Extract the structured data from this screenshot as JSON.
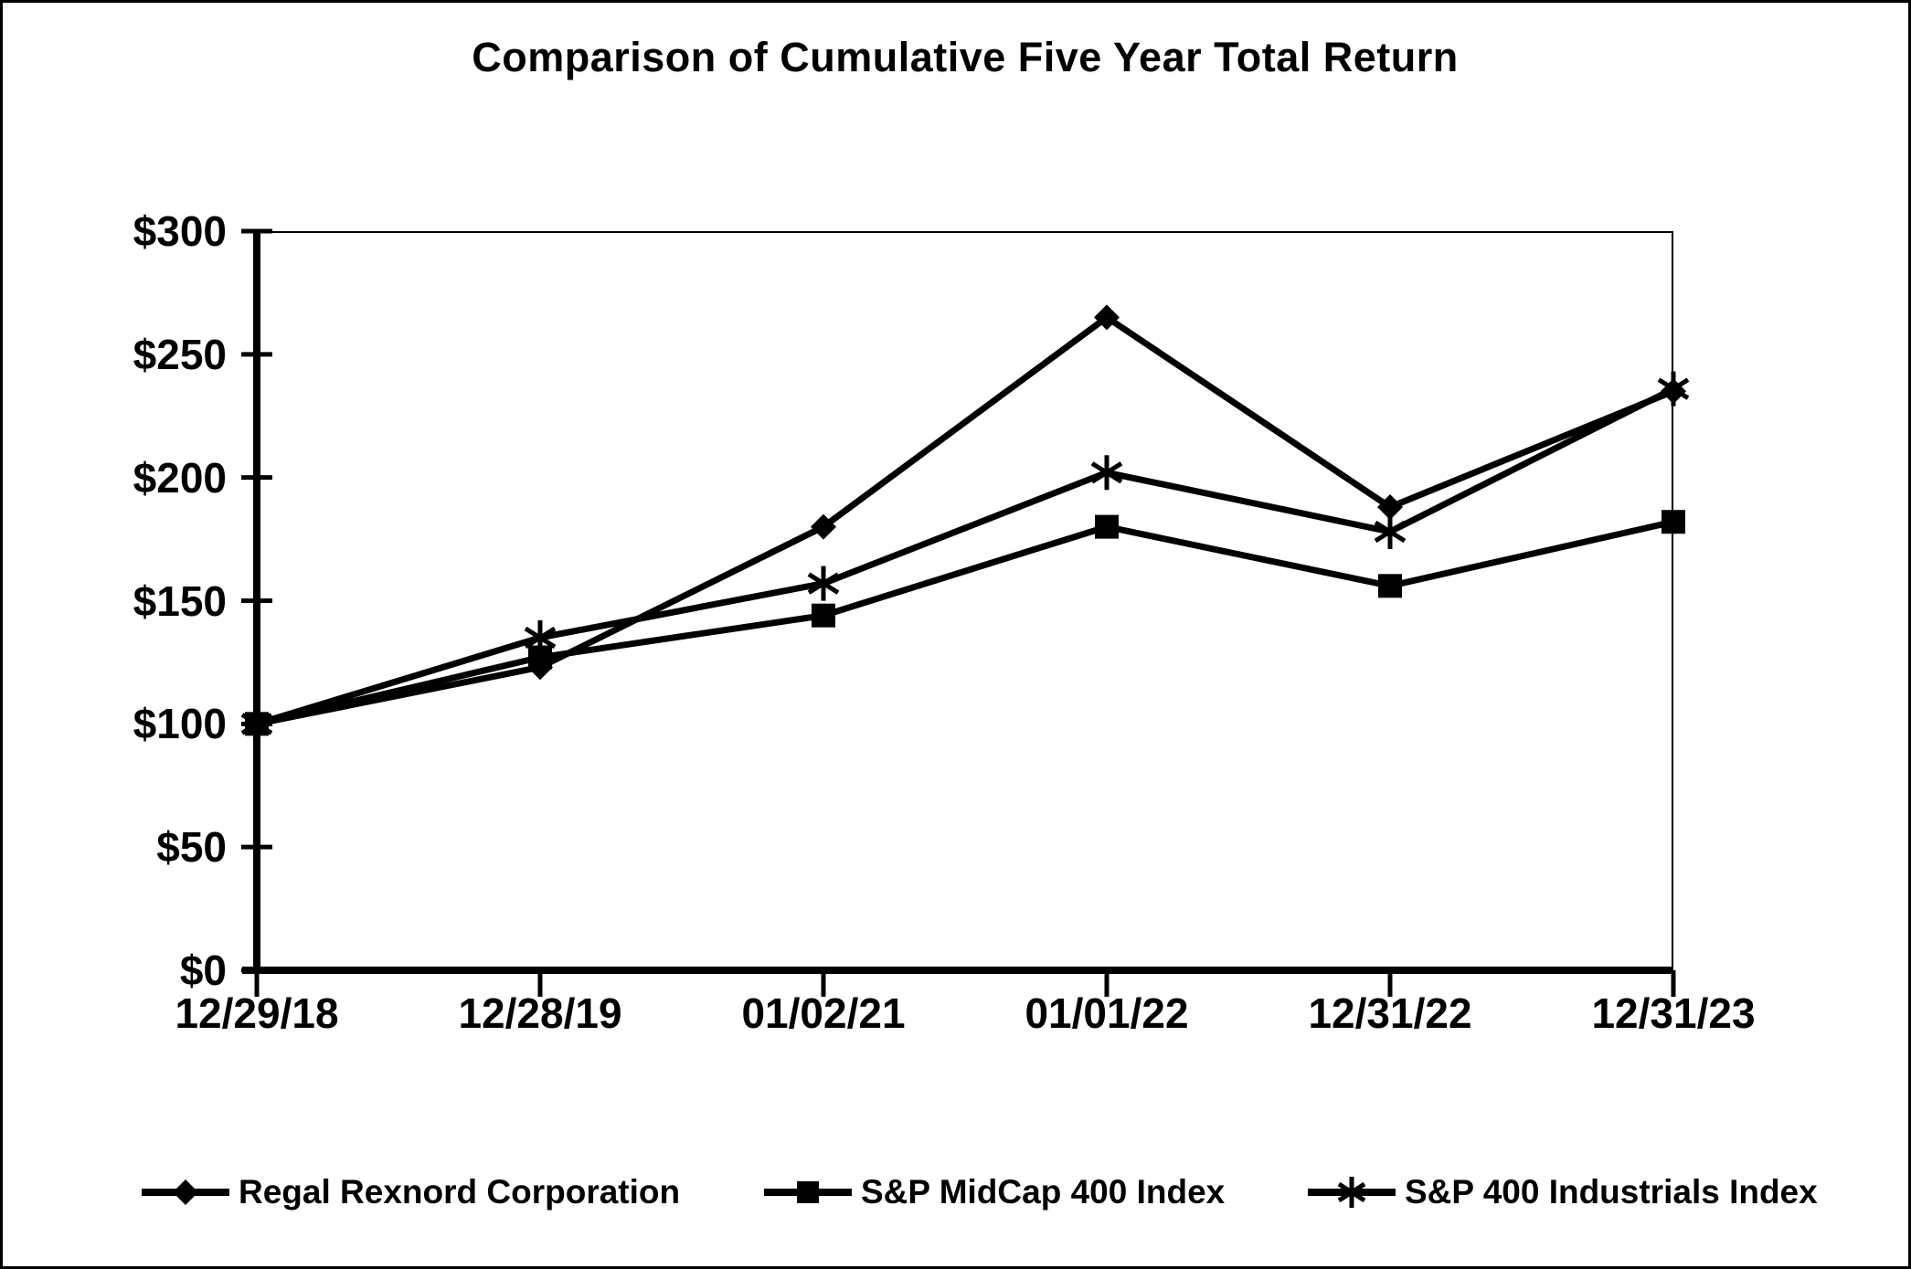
{
  "title": "Comparison of Cumulative Five Year Total Return",
  "colors": {
    "foreground": "#000000",
    "background": "#ffffff"
  },
  "chart_data": {
    "type": "line",
    "title": "Comparison of Cumulative Five Year Total Return",
    "categories": [
      "12/29/18",
      "12/28/19",
      "01/02/21",
      "01/01/22",
      "12/31/22",
      "12/31/23"
    ],
    "series": [
      {
        "name": "Regal Rexnord Corporation",
        "marker": "diamond",
        "color": "#000000",
        "values": [
          100,
          123,
          180,
          265,
          188,
          235
        ]
      },
      {
        "name": "S&P MidCap 400 Index",
        "marker": "square",
        "color": "#000000",
        "values": [
          100,
          127,
          144,
          180,
          156,
          182
        ]
      },
      {
        "name": "S&P 400 Industrials Index",
        "marker": "asterisk",
        "color": "#000000",
        "values": [
          100,
          135,
          157,
          202,
          178,
          236
        ]
      }
    ],
    "xlabel": "",
    "ylabel": "",
    "ylim": [
      0,
      300
    ],
    "ytick_step": 50,
    "yticks": [
      {
        "label": "$0",
        "value": 0
      },
      {
        "label": "$50",
        "value": 50
      },
      {
        "label": "$100",
        "value": 100
      },
      {
        "label": "$150",
        "value": 150
      },
      {
        "label": "$200",
        "value": 200
      },
      {
        "label": "$250",
        "value": 250
      },
      {
        "label": "$300",
        "value": 300
      }
    ],
    "grid": false,
    "legend_position": "bottom"
  }
}
